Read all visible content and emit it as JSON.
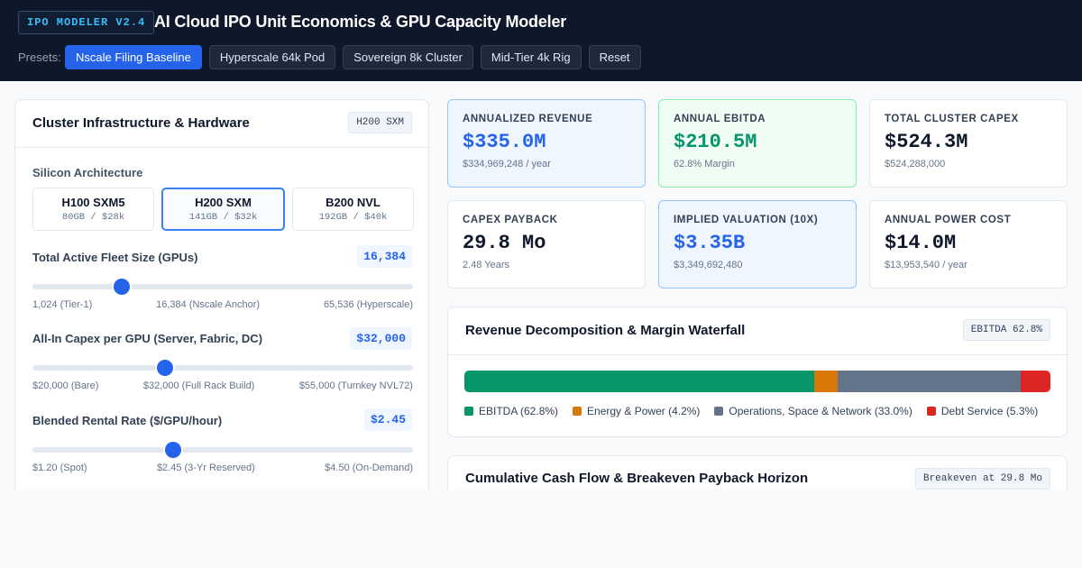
{
  "header": {
    "version": "IPO MODELER V2.4",
    "title": "AI Cloud IPO Unit Economics & GPU Capacity Modeler",
    "presets_label": "Presets:",
    "presets": [
      {
        "label": "Nscale Filing Baseline",
        "active": true
      },
      {
        "label": "Hyperscale 64k Pod",
        "active": false
      },
      {
        "label": "Sovereign 8k Cluster",
        "active": false
      },
      {
        "label": "Mid-Tier 4k Rig",
        "active": false
      },
      {
        "label": "Reset",
        "active": false
      }
    ]
  },
  "infra": {
    "title": "Cluster Infrastructure & Hardware",
    "chip": "H200 SXM",
    "silicon_label": "Silicon Architecture",
    "architectures": [
      {
        "name": "H100 SXM5",
        "spec": "80GB / $28k",
        "active": false
      },
      {
        "name": "H200 SXM",
        "spec": "141GB / $32k",
        "active": true
      },
      {
        "name": "B200 NVL",
        "spec": "192GB / $40k",
        "active": false
      }
    ],
    "fleet": {
      "label": "Total Active Fleet Size (GPUs)",
      "value": "16,384",
      "level": 0.235,
      "scale": [
        "1,024 (Tier-1)",
        "16,384 (Nscale Anchor)",
        "65,536 (Hyperscale)"
      ]
    },
    "capex": {
      "label": "All-In Capex per GPU (Server, Fabric, DC)",
      "value": "$32,000",
      "level": 0.348,
      "scale": [
        "$20,000 (Bare)",
        "$32,000 (Full Rack Build)",
        "$55,000 (Turnkey NVL72)"
      ]
    },
    "rate": {
      "label": "Blended Rental Rate ($/GPU/hour)",
      "value": "$2.45",
      "level": 0.37,
      "scale": [
        "$1.20 (Spot)",
        "$2.45 (3-Yr Reserved)",
        "$4.50 (On-Demand)"
      ]
    }
  },
  "kpis": [
    {
      "label": "Annualized Revenue",
      "value": "$335.0M",
      "sub": "$334,969,248 / year",
      "tone": "blue"
    },
    {
      "label": "Annual EBITDA",
      "value": "$210.5M",
      "sub": "62.8% Margin",
      "tone": "green"
    },
    {
      "label": "Total Cluster Capex",
      "value": "$524.3M",
      "sub": "$524,288,000",
      "tone": "plain"
    },
    {
      "label": "Capex Payback",
      "value": "29.8 Mo",
      "sub": "2.48 Years",
      "tone": "plain"
    },
    {
      "label": "Implied Valuation (10x)",
      "value": "$3.35B",
      "sub": "$3,349,692,480",
      "tone": "blue"
    },
    {
      "label": "Annual Power Cost",
      "value": "$14.0M",
      "sub": "$13,953,540 / year",
      "tone": "plain"
    }
  ],
  "waterfall": {
    "title": "Revenue Decomposition & Margin Waterfall",
    "chip": "EBITDA 62.8%",
    "segments": [
      {
        "label": "EBITDA (62.8%)",
        "share": 62.8,
        "color": "#059669"
      },
      {
        "label": "Energy & Power (4.2%)",
        "share": 4.2,
        "color": "#d97706"
      },
      {
        "label": "Operations, Space & Network (33.0%)",
        "share": 33.0,
        "color": "#64748b"
      },
      {
        "label": "Debt Service (5.3%)",
        "share": 5.3,
        "color": "#dc2626"
      }
    ]
  },
  "cashflow": {
    "title": "Cumulative Cash Flow & Breakeven Payback Horizon",
    "chip": "Breakeven at 29.8 Mo"
  }
}
